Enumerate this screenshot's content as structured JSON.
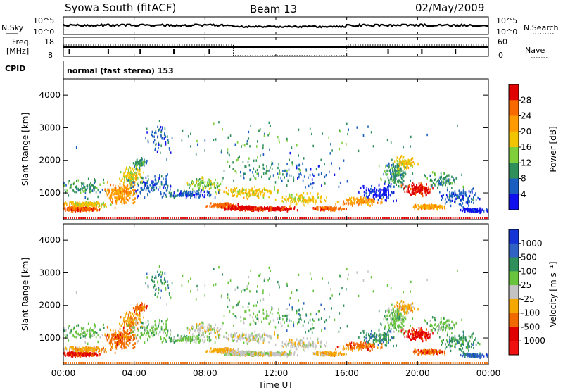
{
  "header": {
    "station": "Syowa South (fitACF)",
    "beam": "Beam 13",
    "date": "02/May/2009"
  },
  "noise_panel": {
    "left_label": "N.Sky",
    "right_label": "N.Search",
    "left_ticks": [
      "10^5",
      "10^0"
    ],
    "right_ticks": [
      "10^5",
      "10^0"
    ]
  },
  "freq_panel": {
    "left_label_top": "Freq.",
    "left_label_bottom": "[MHz]",
    "right_label": "Nave",
    "left_ticks": [
      "18",
      "8"
    ],
    "right_ticks": [
      "60",
      "0"
    ]
  },
  "cpid": {
    "label": "CPID",
    "value": "normal (fast stereo) 153"
  },
  "chart_data": [
    {
      "type": "heatmap",
      "name": "power",
      "ylabel": "Slant Range [km]",
      "yticks": [
        "1000",
        "2000",
        "3000",
        "4000"
      ],
      "ylim": [
        180,
        4500
      ],
      "colorbar": {
        "label": "Power [dB]",
        "ticks": [
          "28",
          "24",
          "20",
          "16",
          "12",
          "8",
          "4"
        ],
        "colors": [
          "#e00000",
          "#f86a00",
          "#ff9a00",
          "#f2c400",
          "#7ecf3b",
          "#2f8f5a",
          "#1a5fbf",
          "#1010ee"
        ]
      }
    },
    {
      "type": "heatmap",
      "name": "velocity",
      "ylabel": "Slant Range [km]",
      "yticks": [
        "1000",
        "2000",
        "3000",
        "4000"
      ],
      "ylim": [
        180,
        4500
      ],
      "colorbar": {
        "label": "Velocity [m s⁻¹]",
        "ticks": [
          "1000",
          "500",
          "100",
          "25",
          "-25",
          "-100",
          "-500",
          "-1000"
        ],
        "colors": [
          "#1434d6",
          "#2f62c2",
          "#2f8f5a",
          "#68c43c",
          "#c4c4c4",
          "#f4a800",
          "#f06a00",
          "#e00000",
          "#f01010"
        ]
      }
    }
  ],
  "xaxis": {
    "label": "Time UT",
    "ticks": [
      "00:00",
      "04:00",
      "08:00",
      "12:00",
      "16:00",
      "20:00",
      "00:00"
    ]
  }
}
